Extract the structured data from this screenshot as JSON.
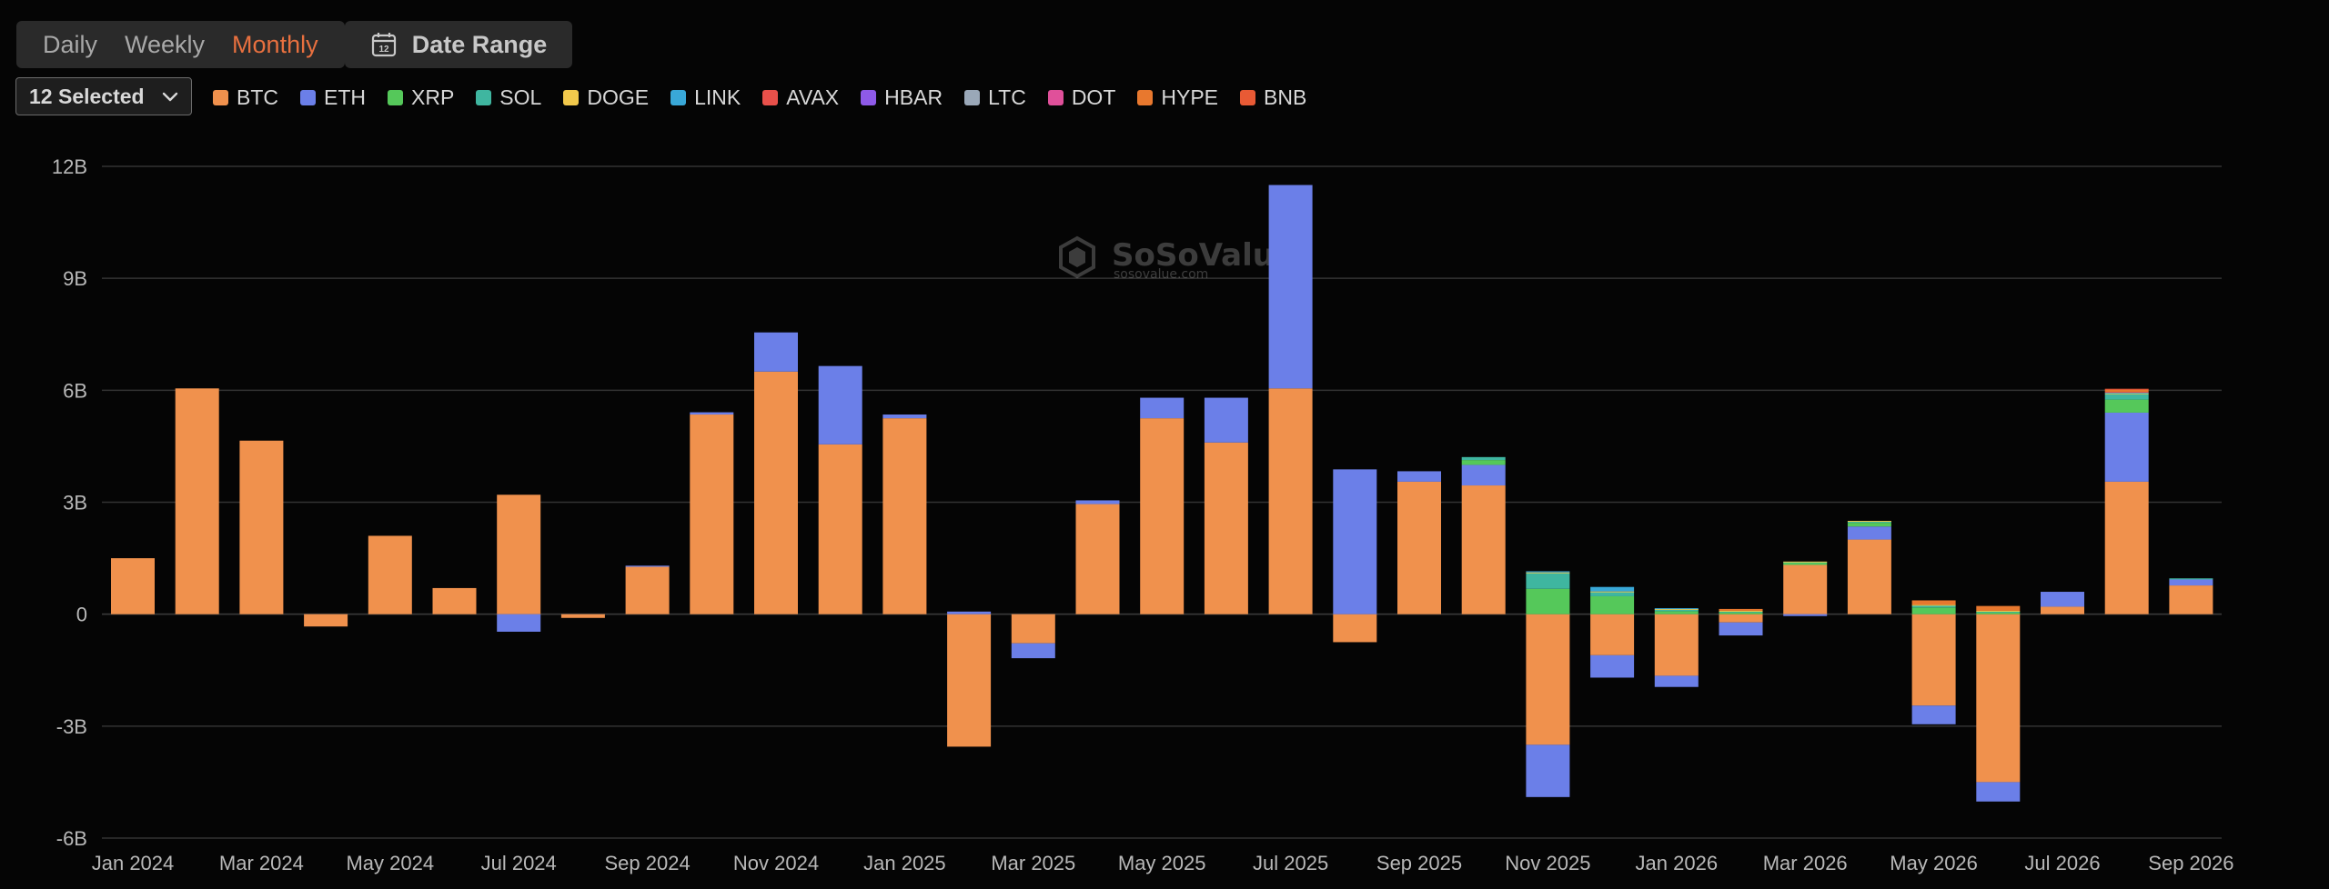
{
  "period_tabs": [
    "Daily",
    "Weekly",
    "Monthly"
  ],
  "active_tab": "Monthly",
  "date_range_label": "Date Range",
  "date_range_day": "12",
  "asset_select_label": "12 Selected",
  "watermark": {
    "name": "SoSoValue",
    "url": "sosovalue.com"
  },
  "colors": {
    "background": "#050505",
    "grid": "#333333",
    "active_tab": "#e8703f"
  },
  "icons": {
    "date_range": "calendar-icon",
    "select": "chevron-down-icon",
    "watermark": "sosovalue-logo-icon"
  },
  "chart_data": {
    "type": "bar",
    "stacked": true,
    "title": "",
    "xlabel": "",
    "ylabel": "",
    "ylim": [
      -6000000000,
      12000000000
    ],
    "yticks": [
      "12B",
      "9B",
      "6B",
      "3B",
      "0",
      "-3B",
      "-6B"
    ],
    "ytick_values": [
      12000000000,
      9000000000,
      6000000000,
      3000000000,
      0,
      -3000000000,
      -6000000000
    ],
    "xtick_labels": [
      "Jan 2024",
      "Mar 2024",
      "May 2024",
      "Jul 2024",
      "Sep 2024",
      "Nov 2024",
      "Jan 2025",
      "Mar 2025",
      "May 2025",
      "Jul 2025",
      "Sep 2025",
      "Nov 2025",
      "Jan 2026",
      "Mar 2026",
      "May 2026",
      "Jul 2026",
      "Sep 2026"
    ],
    "grid": true,
    "legend_placement": "top-left",
    "categories": [
      "Jan 2024",
      "Feb 2024",
      "Mar 2024",
      "Apr 2024",
      "May 2024",
      "Jun 2024",
      "Jul 2024",
      "Aug 2024",
      "Sep 2024",
      "Oct 2024",
      "Nov 2024",
      "Dec 2024",
      "Jan 2025",
      "Feb 2025",
      "Mar 2025",
      "Apr 2025",
      "May 2025",
      "Jun 2025",
      "Jul 2025",
      "Aug 2025",
      "Sep 2025",
      "Oct 2025",
      "Nov 2025",
      "Dec 2025",
      "Jan 2026",
      "Feb 2026",
      "Mar 2026",
      "Apr 2026",
      "May 2026",
      "Jun 2026",
      "Jul 2026",
      "Aug 2026",
      "Sep 2026"
    ],
    "series": [
      {
        "name": "BTC",
        "color": "#f0914d",
        "values": [
          1500000000.0,
          6050000000.0,
          4650000000.0,
          -330000000.0,
          2100000000.0,
          700000000.0,
          3200000000.0,
          -100000000.0,
          1270000000.0,
          5350000000.0,
          6500000000.0,
          4550000000.0,
          5250000000.0,
          -3550000000.0,
          -780000000.0,
          2950000000.0,
          5250000000.0,
          4600000000.0,
          6050000000.0,
          -750000000.0,
          3550000000.0,
          3450000000.0,
          -3500000000.0,
          -1100000000.0,
          -1650000000.0,
          -220000000.0,
          1320000000.0,
          2000000000.0,
          -2450000000.0,
          -4500000000.0,
          200000000.0,
          3550000000.0,
          770000000.0
        ]
      },
      {
        "name": "ETH",
        "color": "#6b7fe8",
        "values": [
          0,
          0,
          0,
          0,
          0,
          0,
          -470000000.0,
          0,
          30000000.0,
          60000000.0,
          1050000000.0,
          2100000000.0,
          100000000.0,
          70000000.0,
          -400000000.0,
          100000000.0,
          550000000.0,
          1200000000.0,
          5450000000.0,
          3880000000.0,
          280000000.0,
          550000000.0,
          -1400000000.0,
          -600000000.0,
          -300000000.0,
          -350000000.0,
          -50000000.0,
          350000000.0,
          -500000000.0,
          -520000000.0,
          400000000.0,
          1850000000.0,
          160000000.0
        ]
      },
      {
        "name": "XRP",
        "color": "#55c85a",
        "values": [
          0,
          0,
          0,
          0,
          0,
          0,
          0,
          0,
          0,
          0,
          0,
          0,
          0,
          0,
          0,
          0,
          0,
          0,
          0,
          0,
          0,
          130000000.0,
          680000000.0,
          480000000.0,
          80000000.0,
          50000000.0,
          60000000.0,
          100000000.0,
          180000000.0,
          50000000.0,
          0,
          350000000.0,
          0
        ]
      },
      {
        "name": "SOL",
        "color": "#3fb6a0",
        "values": [
          0,
          0,
          0,
          0,
          0,
          0,
          0,
          0,
          0,
          0,
          0,
          0,
          0,
          0,
          0,
          0,
          0,
          0,
          0,
          0,
          0,
          80000000.0,
          420000000.0,
          120000000.0,
          50000000.0,
          20000000.0,
          20000000.0,
          40000000.0,
          60000000.0,
          20000000.0,
          0,
          150000000.0,
          30000000.0
        ]
      },
      {
        "name": "DOGE",
        "color": "#f2c94c",
        "values": [
          0,
          0,
          0,
          0,
          0,
          0,
          0,
          0,
          0,
          0,
          0,
          0,
          0,
          0,
          0,
          0,
          0,
          0,
          0,
          0,
          0,
          0,
          20000000.0,
          10000000.0,
          10000000.0,
          20000000.0,
          10000000.0,
          10000000.0,
          10000000.0,
          20000000.0,
          0,
          20000000.0,
          0
        ]
      },
      {
        "name": "LINK",
        "color": "#39a8d8",
        "values": [
          0,
          0,
          0,
          0,
          0,
          0,
          0,
          0,
          0,
          0,
          0,
          0,
          0,
          0,
          0,
          0,
          0,
          0,
          0,
          0,
          0,
          0,
          30000000.0,
          120000000.0,
          20000000.0,
          0,
          0,
          0,
          0,
          0,
          0,
          20000000.0,
          0
        ]
      },
      {
        "name": "AVAX",
        "color": "#e8504a",
        "values": [
          0,
          0,
          0,
          0,
          0,
          0,
          0,
          0,
          0,
          0,
          0,
          0,
          0,
          0,
          0,
          0,
          0,
          0,
          0,
          0,
          0,
          0,
          0,
          0,
          0,
          0,
          0,
          0,
          0,
          0,
          0,
          20000000.0,
          0
        ]
      },
      {
        "name": "HBAR",
        "color": "#8e5ae8",
        "values": [
          0,
          0,
          0,
          0,
          0,
          0,
          0,
          0,
          0,
          0,
          0,
          0,
          0,
          0,
          0,
          0,
          0,
          0,
          0,
          0,
          0,
          0,
          0,
          0,
          0,
          0,
          0,
          0,
          0,
          0,
          0,
          0,
          0
        ]
      },
      {
        "name": "LTC",
        "color": "#9aa8b8",
        "values": [
          0,
          0,
          0,
          0,
          0,
          0,
          0,
          0,
          0,
          0,
          0,
          0,
          0,
          0,
          0,
          0,
          0,
          0,
          0,
          0,
          0,
          0,
          0,
          0,
          0,
          0,
          0,
          0,
          0,
          0,
          0,
          0,
          0
        ]
      },
      {
        "name": "DOT",
        "color": "#e0509a",
        "values": [
          0,
          0,
          0,
          0,
          0,
          0,
          0,
          0,
          0,
          0,
          0,
          0,
          0,
          0,
          0,
          0,
          0,
          0,
          0,
          0,
          0,
          0,
          0,
          0,
          0,
          0,
          0,
          0,
          0,
          0,
          0,
          0,
          0
        ]
      },
      {
        "name": "HYPE",
        "color": "#e8782e",
        "values": [
          0,
          0,
          0,
          0,
          0,
          0,
          0,
          0,
          0,
          0,
          0,
          0,
          0,
          0,
          0,
          0,
          0,
          0,
          0,
          0,
          0,
          0,
          0,
          0,
          0,
          50000000.0,
          0,
          0,
          120000000.0,
          130000000.0,
          0,
          50000000.0,
          0
        ]
      },
      {
        "name": "BNB",
        "color": "#e85a35",
        "values": [
          0,
          0,
          0,
          0,
          0,
          0,
          0,
          0,
          0,
          0,
          0,
          0,
          0,
          0,
          0,
          0,
          0,
          0,
          0,
          0,
          0,
          0,
          0,
          0,
          0,
          0,
          0,
          0,
          0,
          0,
          0,
          30000000.0,
          0
        ]
      }
    ]
  }
}
